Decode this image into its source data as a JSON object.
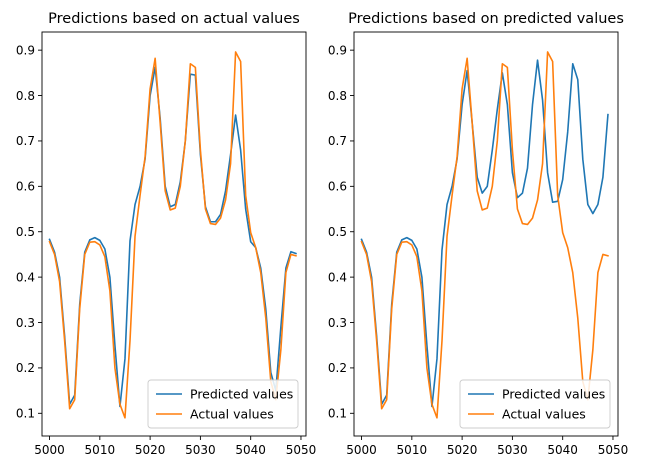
{
  "chart_data": [
    {
      "type": "line",
      "title": "Predictions based on actual values",
      "xlabel": "",
      "ylabel": "",
      "xlim": [
        4998.5,
        5051.0
      ],
      "ylim": [
        0.05,
        0.94
      ],
      "xticks": [
        5000,
        5010,
        5020,
        5030,
        5040,
        5050
      ],
      "yticks": [
        0.1,
        0.2,
        0.3,
        0.4,
        0.5,
        0.6,
        0.7,
        0.8,
        0.9
      ],
      "ytick_labels": [
        "0.1",
        "0.2",
        "0.3",
        "0.4",
        "0.5",
        "0.6",
        "0.7",
        "0.8",
        "0.9"
      ],
      "legend_position": "lower-right",
      "grid": false,
      "x": [
        5000,
        5001,
        5002,
        5003,
        5004,
        5005,
        5006,
        5007,
        5008,
        5009,
        5010,
        5011,
        5012,
        5013,
        5014,
        5015,
        5016,
        5017,
        5018,
        5019,
        5020,
        5021,
        5022,
        5023,
        5024,
        5025,
        5026,
        5027,
        5028,
        5029,
        5030,
        5031,
        5032,
        5033,
        5034,
        5035,
        5036,
        5037,
        5038,
        5039,
        5040,
        5041,
        5042,
        5043,
        5044,
        5045,
        5046,
        5047,
        5048,
        5049
      ],
      "series": [
        {
          "name": "Predicted values",
          "color": "#1f77b4",
          "values": [
            0.483,
            0.455,
            0.4,
            0.27,
            0.12,
            0.14,
            0.34,
            0.455,
            0.482,
            0.487,
            0.481,
            0.462,
            0.4,
            0.25,
            0.115,
            0.22,
            0.48,
            0.56,
            0.6,
            0.66,
            0.8,
            0.862,
            0.75,
            0.6,
            0.555,
            0.56,
            0.61,
            0.7,
            0.847,
            0.845,
            0.67,
            0.555,
            0.522,
            0.522,
            0.538,
            0.59,
            0.67,
            0.757,
            0.68,
            0.55,
            0.478,
            0.465,
            0.42,
            0.33,
            0.19,
            0.15,
            0.29,
            0.42,
            0.456,
            0.452
          ]
        },
        {
          "name": "Actual values",
          "color": "#ff7f0e",
          "values": [
            0.478,
            0.45,
            0.39,
            0.26,
            0.11,
            0.13,
            0.33,
            0.45,
            0.477,
            0.478,
            0.471,
            0.445,
            0.37,
            0.2,
            0.12,
            0.09,
            0.26,
            0.49,
            0.58,
            0.665,
            0.815,
            0.882,
            0.74,
            0.59,
            0.548,
            0.552,
            0.6,
            0.7,
            0.87,
            0.862,
            0.68,
            0.55,
            0.518,
            0.516,
            0.53,
            0.57,
            0.65,
            0.896,
            0.875,
            0.58,
            0.498,
            0.465,
            0.41,
            0.31,
            0.17,
            0.13,
            0.24,
            0.41,
            0.45,
            0.447
          ]
        }
      ]
    },
    {
      "type": "line",
      "title": "Predictions based on predicted values",
      "xlabel": "",
      "ylabel": "",
      "xlim": [
        4998.5,
        5051.0
      ],
      "ylim": [
        0.05,
        0.94
      ],
      "xticks": [
        5000,
        5010,
        5020,
        5030,
        5040,
        5050
      ],
      "yticks": [
        0.1,
        0.2,
        0.3,
        0.4,
        0.5,
        0.6,
        0.7,
        0.8,
        0.9
      ],
      "ytick_labels": [
        "0.1",
        "0.2",
        "0.3",
        "0.4",
        "0.5",
        "0.6",
        "0.7",
        "0.8",
        "0.9"
      ],
      "legend_position": "lower-right",
      "grid": false,
      "x": [
        5000,
        5001,
        5002,
        5003,
        5004,
        5005,
        5006,
        5007,
        5008,
        5009,
        5010,
        5011,
        5012,
        5013,
        5014,
        5015,
        5016,
        5017,
        5018,
        5019,
        5020,
        5021,
        5022,
        5023,
        5024,
        5025,
        5026,
        5027,
        5028,
        5029,
        5030,
        5031,
        5032,
        5033,
        5034,
        5035,
        5036,
        5037,
        5038,
        5039,
        5040,
        5041,
        5042,
        5043,
        5044,
        5045,
        5046,
        5047,
        5048,
        5049
      ],
      "series": [
        {
          "name": "Predicted values",
          "color": "#1f77b4",
          "values": [
            0.483,
            0.455,
            0.4,
            0.27,
            0.12,
            0.14,
            0.34,
            0.455,
            0.482,
            0.487,
            0.481,
            0.462,
            0.4,
            0.25,
            0.115,
            0.22,
            0.46,
            0.56,
            0.6,
            0.66,
            0.78,
            0.855,
            0.74,
            0.62,
            0.585,
            0.6,
            0.68,
            0.77,
            0.85,
            0.78,
            0.63,
            0.575,
            0.585,
            0.64,
            0.78,
            0.878,
            0.79,
            0.63,
            0.565,
            0.567,
            0.615,
            0.72,
            0.87,
            0.835,
            0.66,
            0.56,
            0.54,
            0.56,
            0.62,
            0.758
          ]
        },
        {
          "name": "Actual values",
          "color": "#ff7f0e",
          "values": [
            0.478,
            0.45,
            0.39,
            0.26,
            0.11,
            0.13,
            0.33,
            0.45,
            0.477,
            0.478,
            0.471,
            0.445,
            0.37,
            0.2,
            0.12,
            0.09,
            0.26,
            0.49,
            0.58,
            0.665,
            0.815,
            0.882,
            0.74,
            0.59,
            0.548,
            0.552,
            0.6,
            0.7,
            0.87,
            0.862,
            0.68,
            0.55,
            0.518,
            0.516,
            0.53,
            0.57,
            0.65,
            0.896,
            0.875,
            0.58,
            0.498,
            0.465,
            0.41,
            0.31,
            0.17,
            0.13,
            0.24,
            0.41,
            0.45,
            0.447
          ]
        }
      ]
    }
  ]
}
